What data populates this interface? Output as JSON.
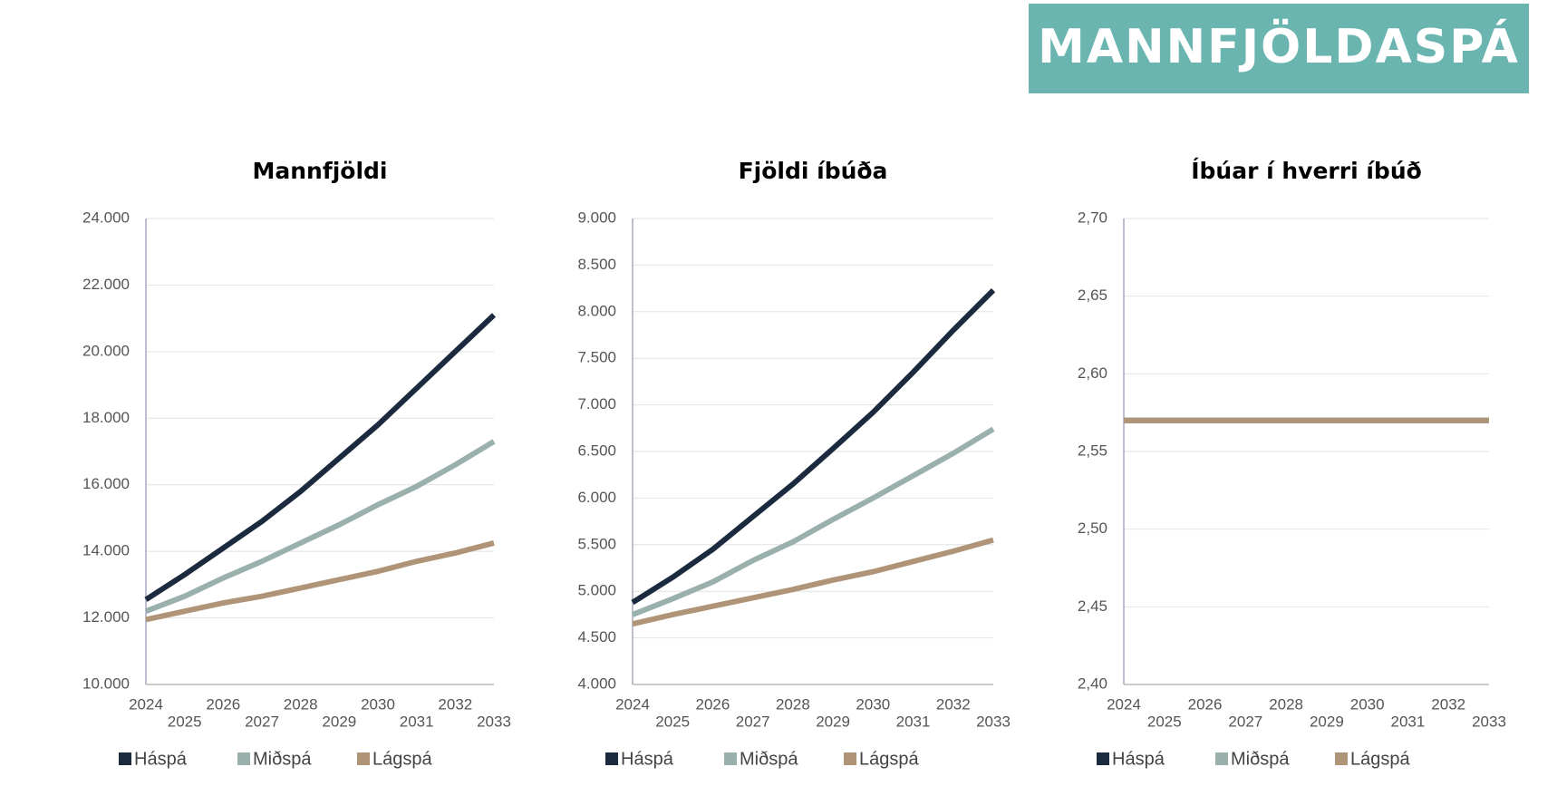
{
  "header": {
    "title": "MANNFJÖLDASPÁ"
  },
  "chart_data": [
    {
      "type": "line",
      "title": "Mannfjöldi",
      "x": [
        2024,
        2025,
        2026,
        2027,
        2028,
        2029,
        2030,
        2031,
        2032,
        2033
      ],
      "series": [
        {
          "name": "Háspá",
          "color": "#1b2a3e",
          "values": [
            12550,
            13300,
            14100,
            14900,
            15800,
            16800,
            17800,
            18900,
            20000,
            21100
          ]
        },
        {
          "name": "Miðspá",
          "color": "#9ab0ad",
          "values": [
            12200,
            12650,
            13200,
            13700,
            14250,
            14800,
            15400,
            15950,
            16600,
            17300
          ]
        },
        {
          "name": "Lágspá",
          "color": "#b09478",
          "values": [
            11950,
            12200,
            12450,
            12650,
            12900,
            13150,
            13400,
            13700,
            13950,
            14250
          ]
        }
      ],
      "ylim": [
        10000,
        24000
      ],
      "yticks": [
        {
          "value": 10000,
          "label": "10.000"
        },
        {
          "value": 12000,
          "label": "12.000"
        },
        {
          "value": 14000,
          "label": "14.000"
        },
        {
          "value": 16000,
          "label": "16.000"
        },
        {
          "value": 18000,
          "label": "18.000"
        },
        {
          "value": 20000,
          "label": "20.000"
        },
        {
          "value": 22000,
          "label": "22.000"
        },
        {
          "value": 24000,
          "label": "24.000"
        }
      ],
      "grid": true,
      "legend": "bottom"
    },
    {
      "type": "line",
      "title": "Fjöldi íbúða",
      "x": [
        2024,
        2025,
        2026,
        2027,
        2028,
        2029,
        2030,
        2031,
        2032,
        2033
      ],
      "series": [
        {
          "name": "Háspá",
          "color": "#1b2a3e",
          "values": [
            4880,
            5150,
            5450,
            5800,
            6150,
            6530,
            6920,
            7350,
            7800,
            8230
          ]
        },
        {
          "name": "Miðspá",
          "color": "#9ab0ad",
          "values": [
            4750,
            4920,
            5100,
            5330,
            5530,
            5770,
            6000,
            6240,
            6480,
            6740
          ]
        },
        {
          "name": "Lágspá",
          "color": "#b09478",
          "values": [
            4650,
            4750,
            4840,
            4930,
            5020,
            5120,
            5210,
            5320,
            5430,
            5550
          ]
        }
      ],
      "ylim": [
        4000,
        9000
      ],
      "yticks": [
        {
          "value": 4000,
          "label": "4.000"
        },
        {
          "value": 4500,
          "label": "4.500"
        },
        {
          "value": 5000,
          "label": "5.000"
        },
        {
          "value": 5500,
          "label": "5.500"
        },
        {
          "value": 6000,
          "label": "6.000"
        },
        {
          "value": 6500,
          "label": "6.500"
        },
        {
          "value": 7000,
          "label": "7.000"
        },
        {
          "value": 7500,
          "label": "7.500"
        },
        {
          "value": 8000,
          "label": "8.000"
        },
        {
          "value": 8500,
          "label": "8.500"
        },
        {
          "value": 9000,
          "label": "9.000"
        }
      ],
      "grid": true,
      "legend": "bottom"
    },
    {
      "type": "line",
      "title": "Íbúar í hverri íbúð",
      "x": [
        2024,
        2025,
        2026,
        2027,
        2028,
        2029,
        2030,
        2031,
        2032,
        2033
      ],
      "series": [
        {
          "name": "Háspá",
          "color": "#1b2a3e",
          "values": [
            2.57,
            2.57,
            2.57,
            2.57,
            2.57,
            2.57,
            2.57,
            2.57,
            2.57,
            2.57
          ]
        },
        {
          "name": "Miðspá",
          "color": "#9ab0ad",
          "values": [
            2.57,
            2.57,
            2.57,
            2.57,
            2.57,
            2.57,
            2.57,
            2.57,
            2.57,
            2.57
          ]
        },
        {
          "name": "Lágspá",
          "color": "#b09478",
          "values": [
            2.57,
            2.57,
            2.57,
            2.57,
            2.57,
            2.57,
            2.57,
            2.57,
            2.57,
            2.57
          ]
        }
      ],
      "ylim": [
        2.4,
        2.7
      ],
      "yticks": [
        {
          "value": 2.4,
          "label": "2,40"
        },
        {
          "value": 2.45,
          "label": "2,45"
        },
        {
          "value": 2.5,
          "label": "2,50"
        },
        {
          "value": 2.55,
          "label": "2,55"
        },
        {
          "value": 2.6,
          "label": "2,60"
        },
        {
          "value": 2.65,
          "label": "2,65"
        },
        {
          "value": 2.7,
          "label": "2,70"
        }
      ],
      "grid": true,
      "legend": "bottom"
    }
  ]
}
